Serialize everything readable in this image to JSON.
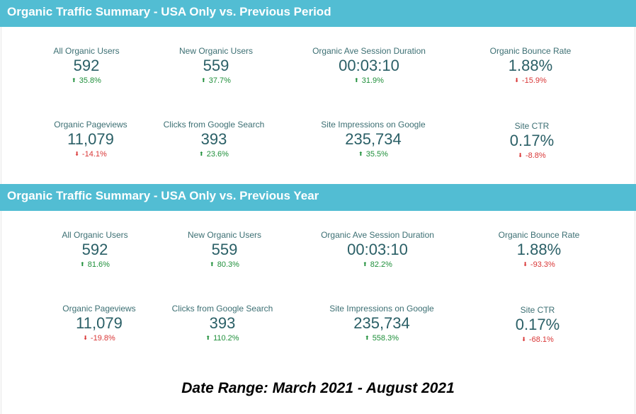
{
  "sections": [
    {
      "title": "Organic Traffic Summary - USA Only vs. Previous Period",
      "metrics": [
        {
          "label": "All Organic Users",
          "value": "592",
          "delta": "35.8%",
          "direction": "up"
        },
        {
          "label": "New Organic Users",
          "value": "559",
          "delta": "37.7%",
          "direction": "up"
        },
        {
          "label": "Organic Ave Session Duration",
          "value": "00:03:10",
          "delta": "31.9%",
          "direction": "up"
        },
        {
          "label": "Organic Bounce Rate",
          "value": "1.88%",
          "delta": "-15.9%",
          "direction": "down"
        },
        {
          "label": "Organic Pageviews",
          "value": "11,079",
          "delta": "-14.1%",
          "direction": "down"
        },
        {
          "label": "Clicks from Google Search",
          "value": "393",
          "delta": "23.6%",
          "direction": "up"
        },
        {
          "label": "Site Impressions on Google",
          "value": "235,734",
          "delta": "35.5%",
          "direction": "up"
        },
        {
          "label": "Site CTR",
          "value": "0.17%",
          "delta": "-8.8%",
          "direction": "down"
        }
      ]
    },
    {
      "title": "Organic Traffic Summary - USA Only vs. Previous Year",
      "metrics": [
        {
          "label": "All Organic Users",
          "value": "592",
          "delta": "81.6%",
          "direction": "up"
        },
        {
          "label": "New Organic Users",
          "value": "559",
          "delta": "80.3%",
          "direction": "up"
        },
        {
          "label": "Organic Ave Session Duration",
          "value": "00:03:10",
          "delta": "82.2%",
          "direction": "up"
        },
        {
          "label": "Organic Bounce Rate",
          "value": "1.88%",
          "delta": "-93.3%",
          "direction": "down"
        },
        {
          "label": "Organic Pageviews",
          "value": "11,079",
          "delta": "-19.8%",
          "direction": "down"
        },
        {
          "label": "Clicks from Google Search",
          "value": "393",
          "delta": "110.2%",
          "direction": "up"
        },
        {
          "label": "Site Impressions on Google",
          "value": "235,734",
          "delta": "558.3%",
          "direction": "up"
        },
        {
          "label": "Site CTR",
          "value": "0.17%",
          "delta": "-68.1%",
          "direction": "down"
        }
      ]
    }
  ],
  "footer": {
    "date_range": "Date Range: March 2021 - August 2021"
  },
  "colors": {
    "band": "#52bdd3",
    "positive": "#1e8f3a",
    "negative": "#d93636",
    "value": "#2a5f66",
    "label": "#3c6f73"
  },
  "icons": {
    "up": "arrow-up-icon",
    "down": "arrow-down-icon"
  }
}
